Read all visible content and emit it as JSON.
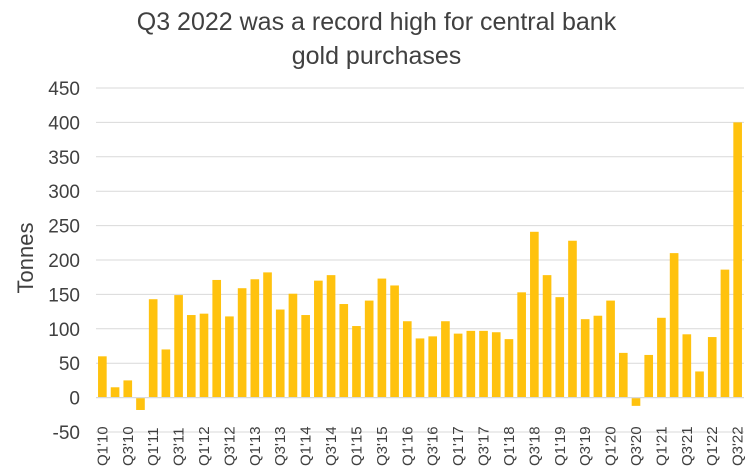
{
  "chart_data": {
    "type": "bar",
    "title_lines": [
      "Q3 2022 was a record high for central bank",
      "gold purchases"
    ],
    "ylabel": "Tonnes",
    "xlabel": "",
    "ylim": [
      -50,
      450
    ],
    "yticks": [
      -50,
      0,
      50,
      100,
      150,
      200,
      250,
      300,
      350,
      400,
      450
    ],
    "grid": "horizontal",
    "colors": {
      "bar": "#FFC20E",
      "grid": "#D9D9D9",
      "text": "#404040"
    },
    "categories": [
      "Q1'10",
      "Q2'10",
      "Q3'10",
      "Q4'10",
      "Q1'11",
      "Q2'11",
      "Q3'11",
      "Q4'11",
      "Q1'12",
      "Q2'12",
      "Q3'12",
      "Q4'12",
      "Q1'13",
      "Q2'13",
      "Q3'13",
      "Q4'13",
      "Q1'14",
      "Q2'14",
      "Q3'14",
      "Q4'14",
      "Q1'15",
      "Q2'15",
      "Q3'15",
      "Q4'15",
      "Q1'16",
      "Q2'16",
      "Q3'16",
      "Q4'16",
      "Q1'17",
      "Q2'17",
      "Q3'17",
      "Q4'17",
      "Q1'18",
      "Q2'18",
      "Q3'18",
      "Q4'18",
      "Q1'19",
      "Q2'19",
      "Q3'19",
      "Q4'19",
      "Q1'20",
      "Q2'20",
      "Q3'20",
      "Q4'20",
      "Q1'21",
      "Q2'21",
      "Q3'21",
      "Q4'21",
      "Q1'22",
      "Q2'22",
      "Q3'22"
    ],
    "x_tick_labels": [
      "Q1'10",
      "Q3'10",
      "Q1'11",
      "Q3'11",
      "Q1'12",
      "Q3'12",
      "Q1'13",
      "Q3'13",
      "Q1'14",
      "Q3'14",
      "Q1'15",
      "Q3'15",
      "Q1'16",
      "Q3'16",
      "Q1'17",
      "Q3'17",
      "Q1'18",
      "Q3'18",
      "Q1'19",
      "Q3'19",
      "Q1'20",
      "Q3'20",
      "Q1'21",
      "Q3'21",
      "Q1'22",
      "Q3'22"
    ],
    "values": [
      60,
      15,
      25,
      -18,
      143,
      70,
      149,
      120,
      122,
      171,
      118,
      159,
      172,
      182,
      128,
      151,
      120,
      170,
      178,
      136,
      104,
      141,
      173,
      163,
      111,
      86,
      89,
      111,
      93,
      97,
      97,
      95,
      85,
      153,
      241,
      178,
      146,
      228,
      114,
      119,
      141,
      65,
      -12,
      62,
      116,
      210,
      92,
      38,
      88,
      186,
      400
    ]
  }
}
